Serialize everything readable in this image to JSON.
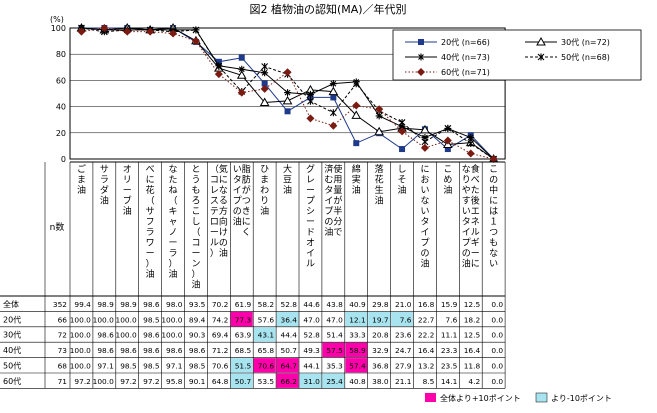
{
  "title": "図2  植物油の認知(MA)／年代別",
  "y_unit": "(%)",
  "n_header": "n数",
  "legend_items": [
    "20代 (n=66)",
    "30代 (n=72)",
    "40代 (n=73)",
    "50代 (n=68)",
    "60代 (n=71)"
  ],
  "foot_high": "全体より+10ポイント",
  "foot_low": "より-10ポイント",
  "colors": {
    "high": "#ff00aa",
    "low": "#a8e4f0"
  },
  "chart_data": {
    "type": "line",
    "title": "図2  植物油の認知(MA)／年代別",
    "ylabel": "(%)",
    "ylim": [
      0,
      100
    ],
    "yticks": [
      0,
      20,
      40,
      60,
      80,
      100
    ],
    "categories": [
      "ごま油",
      "サラダ油",
      "オリーブ油",
      "べに花（サフラワー）油",
      "なたね（キャノーラ）油",
      "とうもろこし（コーン）油",
      "気になる方向けの油（コレステロール）",
      "脂肪がつきにくいタイプの油",
      "ひまわり油",
      "大豆油",
      "グレープシードオイル",
      "使用量が半分で済むタイプの油",
      "綿実油",
      "落花生油",
      "しそ油",
      "においないタイプの油",
      "こめ油",
      "食べた後エネルギーになりやすいタイプの油",
      "この中には１つもない"
    ],
    "series": [
      {
        "name": "全体",
        "n": 352,
        "values": [
          99.4,
          98.9,
          98.9,
          98.6,
          98.0,
          93.5,
          70.2,
          61.9,
          58.2,
          52.8,
          44.6,
          43.8,
          40.9,
          29.8,
          21.0,
          16.8,
          15.9,
          12.5,
          0.0
        ]
      },
      {
        "name": "20代",
        "n": 66,
        "values": [
          100.0,
          100.0,
          100.0,
          98.5,
          100.0,
          89.4,
          74.2,
          77.3,
          57.6,
          36.4,
          47.0,
          47.0,
          12.1,
          19.7,
          7.6,
          22.7,
          7.6,
          18.2,
          0.0
        ]
      },
      {
        "name": "30代",
        "n": 72,
        "values": [
          100.0,
          98.6,
          100.0,
          98.6,
          100.0,
          90.3,
          69.4,
          63.9,
          43.1,
          44.4,
          52.8,
          51.4,
          33.3,
          20.8,
          23.6,
          22.2,
          11.1,
          12.5,
          0.0
        ]
      },
      {
        "name": "40代",
        "n": 73,
        "values": [
          100.0,
          98.6,
          98.6,
          98.6,
          98.6,
          98.6,
          71.2,
          68.5,
          65.8,
          50.7,
          49.3,
          57.5,
          58.9,
          32.9,
          24.7,
          16.4,
          23.3,
          16.4,
          0.0
        ]
      },
      {
        "name": "50代",
        "n": 68,
        "values": [
          100.0,
          97.1,
          98.5,
          98.5,
          97.1,
          98.5,
          70.6,
          51.5,
          70.6,
          64.7,
          44.1,
          35.3,
          57.4,
          36.8,
          27.9,
          13.2,
          23.5,
          11.8,
          0.0
        ]
      },
      {
        "name": "60代",
        "n": 71,
        "values": [
          97.2,
          100.0,
          97.2,
          97.2,
          95.8,
          90.1,
          64.8,
          50.7,
          53.5,
          66.2,
          31.0,
          25.4,
          40.8,
          38.0,
          21.1,
          8.5,
          14.1,
          4.2,
          0.0
        ]
      }
    ],
    "highlight_high": {
      "20代": [
        7
      ],
      "40代": [
        11,
        12
      ],
      "50代": [
        8,
        9,
        12
      ],
      "60代": [
        9
      ]
    },
    "highlight_low": {
      "20代": [
        9,
        12,
        13,
        14
      ],
      "30代": [
        8
      ],
      "50代": [
        7
      ],
      "60代": [
        7,
        10,
        11
      ]
    }
  }
}
